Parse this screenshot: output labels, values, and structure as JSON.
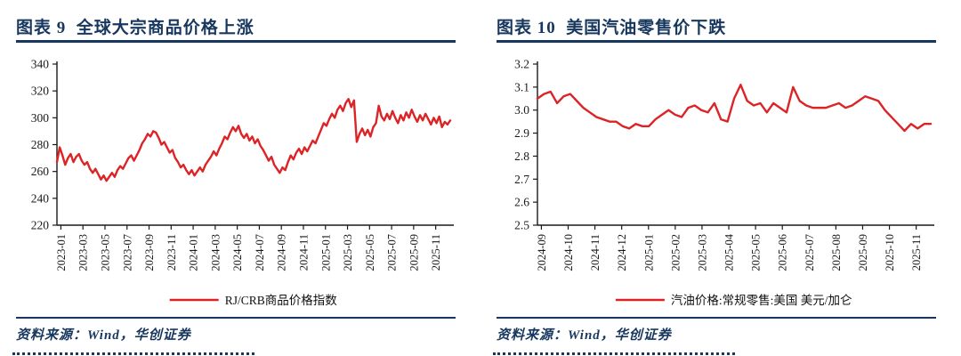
{
  "colors": {
    "navy": "#17375E",
    "line_red": "#DC2426",
    "axis": "#1a1a1a",
    "tick_label": "#1a1a1a"
  },
  "chart_data": [
    {
      "type": "line",
      "title": "图表 9  全球大宗商品价格上涨",
      "source": "资料来源：Wind，华创证券",
      "grid": false,
      "legend_position": "bottom",
      "ylim": [
        220,
        340
      ],
      "y_ticks": [
        "220",
        "240",
        "260",
        "280",
        "300",
        "320",
        "340"
      ],
      "x_tick_labels": [
        "2023-01",
        "2023-03",
        "2023-05",
        "2023-07",
        "2023-09",
        "2023-11",
        "2024-01",
        "2024-03",
        "2024-05",
        "2024-07",
        "2024-09",
        "2024-11",
        "2025-01",
        "2025-03",
        "2025-05",
        "2025-07",
        "2025-09",
        "2025-11"
      ],
      "series": [
        {
          "name": "RJ/CRB商品价格指数",
          "color": "#DC2426",
          "values": [
            267,
            278,
            272,
            265,
            270,
            273,
            267,
            271,
            273,
            268,
            265,
            267,
            262,
            259,
            262,
            258,
            254,
            257,
            253,
            256,
            259,
            256,
            261,
            264,
            262,
            266,
            270,
            272,
            268,
            272,
            276,
            281,
            284,
            288,
            286,
            290,
            289,
            285,
            280,
            282,
            278,
            274,
            276,
            270,
            267,
            263,
            265,
            261,
            258,
            261,
            257,
            260,
            263,
            260,
            265,
            268,
            271,
            275,
            272,
            277,
            281,
            286,
            284,
            289,
            293,
            290,
            294,
            288,
            285,
            288,
            283,
            286,
            281,
            284,
            279,
            276,
            272,
            268,
            271,
            265,
            262,
            259,
            263,
            261,
            267,
            272,
            269,
            274,
            277,
            273,
            278,
            275,
            279,
            283,
            281,
            286,
            291,
            296,
            294,
            299,
            303,
            300,
            306,
            309,
            305,
            311,
            314,
            308,
            313,
            282,
            288,
            292,
            287,
            291,
            286,
            293,
            296,
            309,
            301,
            298,
            303,
            299,
            305,
            300,
            296,
            302,
            298,
            304,
            300,
            306,
            301,
            297,
            302,
            298,
            303,
            299,
            295,
            300,
            296,
            301,
            293,
            297,
            295,
            298
          ]
        }
      ]
    },
    {
      "type": "line",
      "title": "图表 10  美国汽油零售价下跌",
      "source": "资料来源：Wind，华创证券",
      "grid": false,
      "legend_position": "bottom",
      "ylim": [
        2.5,
        3.2
      ],
      "y_ticks": [
        "2.5",
        "2.6",
        "2.7",
        "2.8",
        "2.9",
        "3.0",
        "3.1",
        "3.2"
      ],
      "x_tick_labels": [
        "2024-09",
        "2024-10",
        "2024-11",
        "2024-12",
        "2025-01",
        "2025-02",
        "2025-03",
        "2025-04",
        "2025-05",
        "2025-06",
        "2025-07",
        "2025-08",
        "2025-09",
        "2025-10",
        "2025-11"
      ],
      "series": [
        {
          "name": "汽油价格:常规零售:美国 美元/加仑",
          "color": "#DC2426",
          "values": [
            3.05,
            3.07,
            3.08,
            3.03,
            3.06,
            3.07,
            3.04,
            3.01,
            2.99,
            2.97,
            2.96,
            2.95,
            2.95,
            2.93,
            2.92,
            2.94,
            2.93,
            2.93,
            2.96,
            2.98,
            3.0,
            2.98,
            2.97,
            3.01,
            3.02,
            3.0,
            2.99,
            3.03,
            2.96,
            2.95,
            3.05,
            3.11,
            3.04,
            3.02,
            3.03,
            2.99,
            3.03,
            3.01,
            2.99,
            3.1,
            3.04,
            3.02,
            3.01,
            3.01,
            3.01,
            3.02,
            3.03,
            3.01,
            3.02,
            3.04,
            3.06,
            3.05,
            3.04,
            3.0,
            2.97,
            2.94,
            2.91,
            2.94,
            2.92,
            2.94,
            2.94
          ]
        }
      ]
    }
  ]
}
